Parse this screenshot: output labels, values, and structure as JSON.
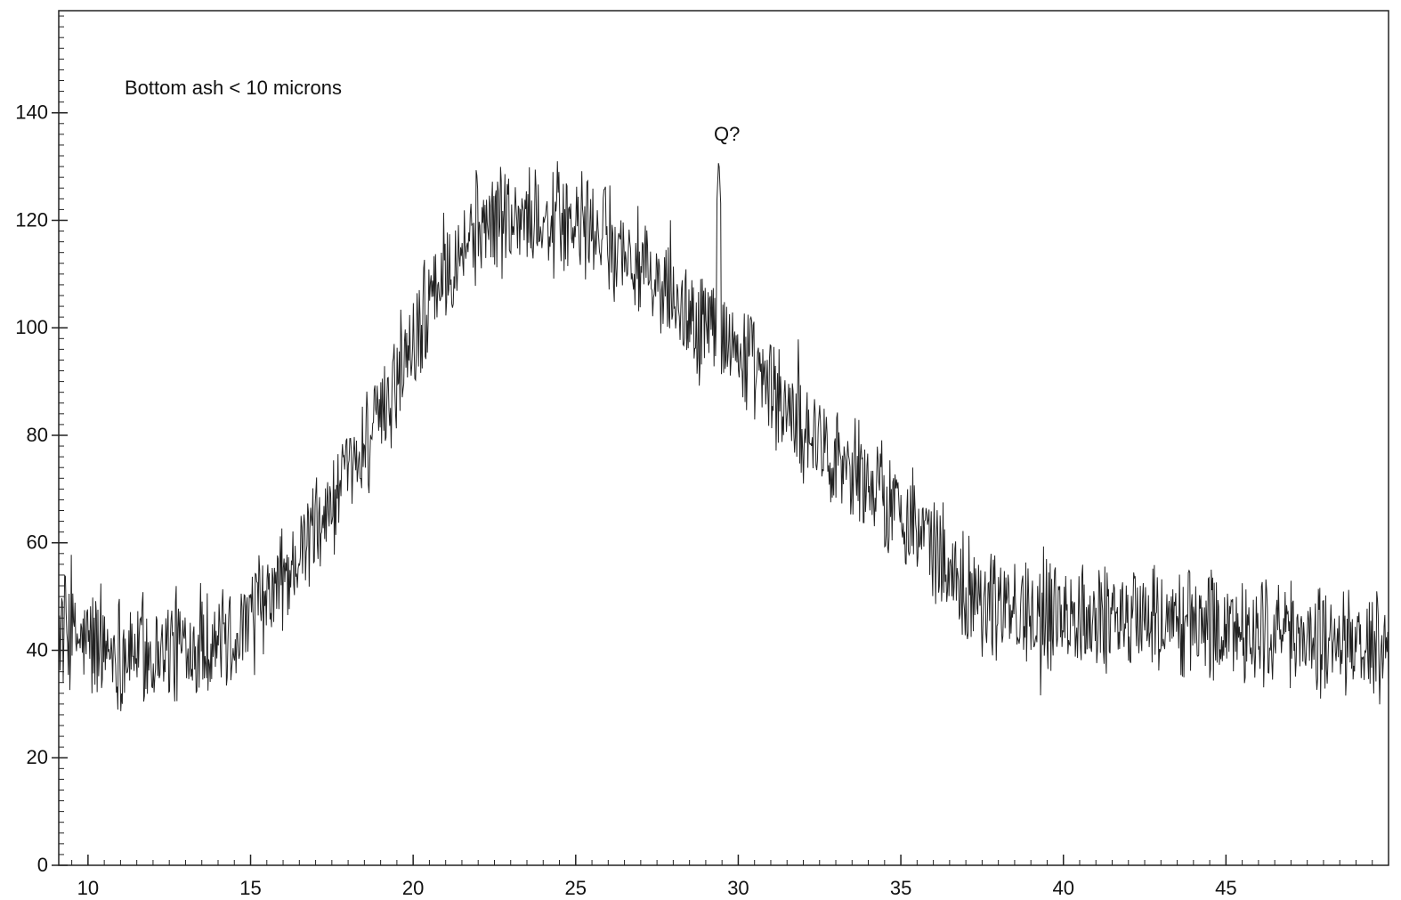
{
  "chart_data": {
    "type": "line",
    "title": "",
    "xlabel": "",
    "ylabel": "",
    "xlim": [
      9.1,
      50.0
    ],
    "ylim": [
      0,
      159
    ],
    "x_ticks": [
      10,
      15,
      20,
      25,
      30,
      35,
      40,
      45
    ],
    "y_ticks": [
      0,
      20,
      40,
      60,
      80,
      100,
      120,
      140
    ],
    "x_minor_step": 0.5,
    "y_minor_step": 2,
    "grid": false,
    "legend": "none",
    "line_color": "#222222",
    "annotations": [
      {
        "text": "Bottom ash < 10 microns"
      },
      {
        "text": "Q?",
        "x": 29.4,
        "y": 132
      }
    ],
    "peak": {
      "x": 29.4,
      "y": 132
    },
    "noise_amplitude": 10,
    "series": [
      {
        "x": [
          9.1,
          10,
          11,
          12,
          13,
          14,
          15,
          16,
          17,
          18,
          19,
          20,
          21,
          22,
          23,
          24,
          25,
          26,
          27,
          28,
          29,
          30,
          31,
          32,
          33,
          34,
          35,
          36,
          37,
          38,
          39,
          40,
          41,
          42,
          43,
          44,
          45,
          46,
          47,
          48,
          49,
          50
        ],
        "y": [
          44,
          41,
          40,
          40,
          41,
          42,
          45,
          53,
          62,
          72,
          84,
          98,
          112,
          119,
          121,
          120,
          119,
          117,
          111,
          104,
          101,
          96,
          88,
          82,
          77,
          71,
          66,
          59,
          52,
          48,
          47,
          47,
          46,
          46,
          46,
          45,
          44,
          44,
          43,
          42,
          41,
          40
        ]
      }
    ]
  }
}
